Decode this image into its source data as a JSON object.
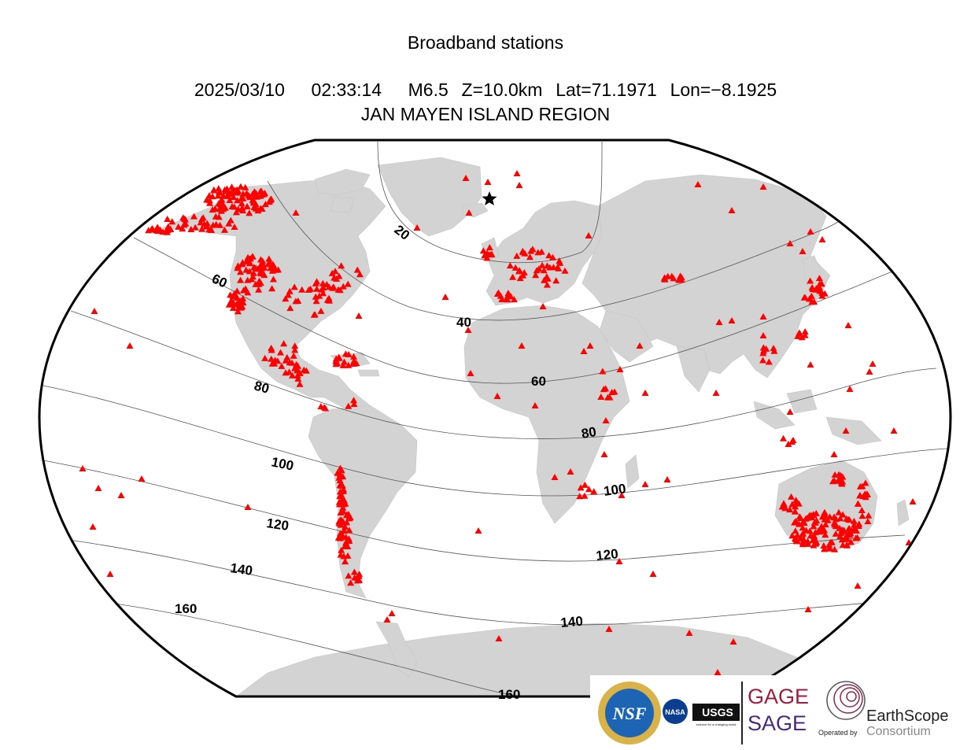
{
  "title": "Broadband stations",
  "event": {
    "date": "2025/03/10",
    "time": "02:33:14",
    "magnitude": "M6.5",
    "depth": "Z=10.0km",
    "lat": "Lat=71.1971",
    "lon": "Lon=−8.1925",
    "region": "JAN MAYEN ISLAND REGION"
  },
  "contours": [
    "20",
    "40",
    "60",
    "80",
    "100",
    "120",
    "140",
    "160"
  ],
  "contour_labels": [
    {
      "text": "20"
    },
    {
      "text": "40"
    },
    {
      "text": "60"
    },
    {
      "text": "60"
    },
    {
      "text": "80"
    },
    {
      "text": "80"
    },
    {
      "text": "100"
    },
    {
      "text": "100"
    },
    {
      "text": "120"
    },
    {
      "text": "120"
    },
    {
      "text": "140"
    },
    {
      "text": "140"
    },
    {
      "text": "160"
    },
    {
      "text": "160"
    }
  ],
  "colors": {
    "land": "#d3d3d3",
    "ocean": "#ffffff",
    "station": "#ff0000",
    "contour": "#555555",
    "border": "#000000"
  },
  "epicenter_icon": "star-icon",
  "station_icon": "triangle-icon",
  "logos": {
    "nsf": "NSF",
    "nasa": "NASA",
    "usgs": "USGS",
    "usgs_tagline": "science for a changing world",
    "gage": "GAGE",
    "sage": "SAGE",
    "operated_by": "Operated by",
    "earthscope": "EarthScope",
    "consortium": "Consortium"
  }
}
